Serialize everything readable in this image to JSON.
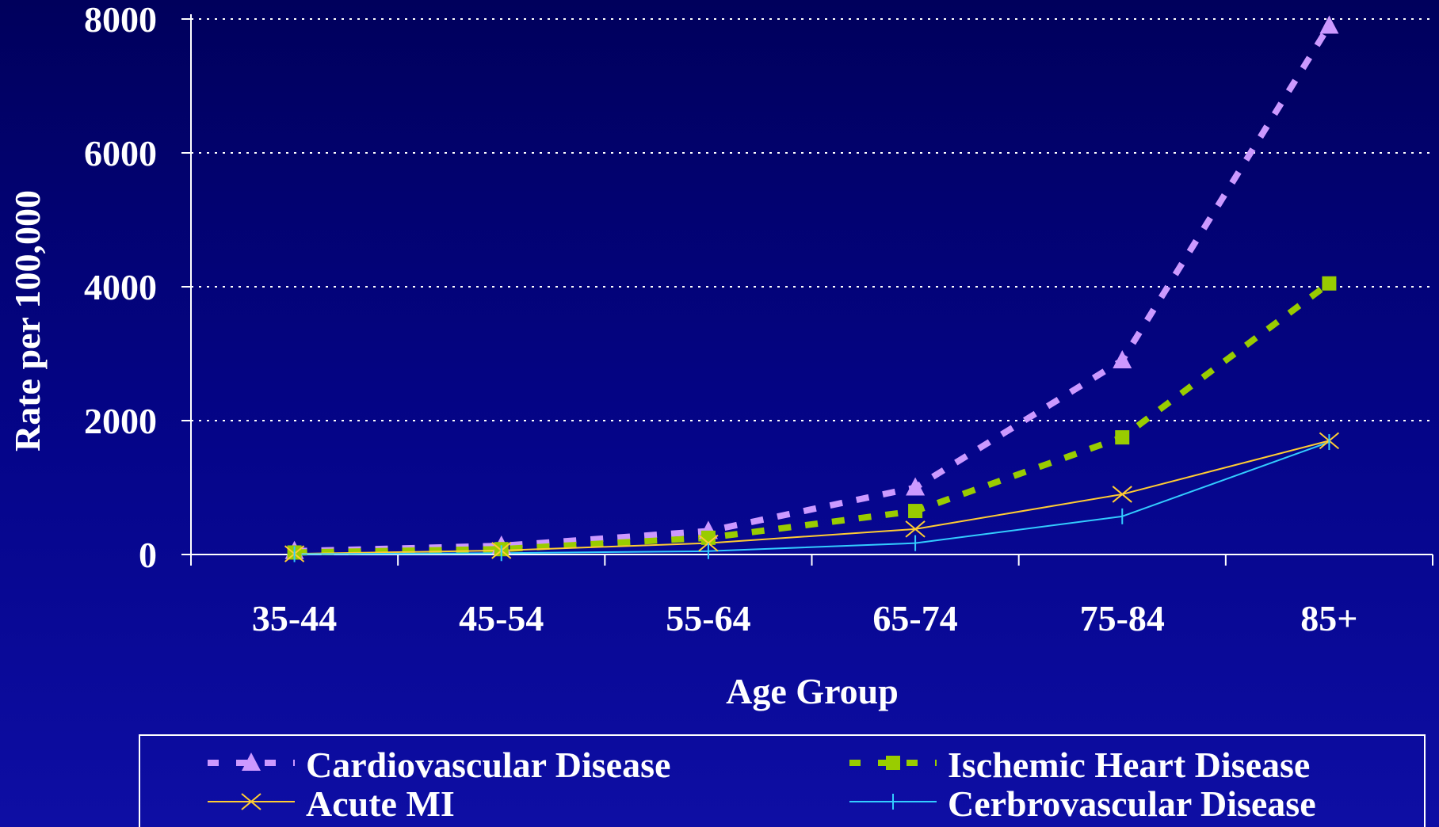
{
  "chart_data": {
    "type": "line",
    "title": "",
    "xlabel": "Age Group",
    "ylabel": "Rate per 100,000",
    "categories": [
      "35-44",
      "45-54",
      "55-64",
      "65-74",
      "75-84",
      "85+"
    ],
    "ylim": [
      0,
      8000
    ],
    "yticks": [
      "0",
      "2000",
      "4000",
      "6000",
      "8000"
    ],
    "grid": "horizontal dotted",
    "legend_position": "bottom",
    "series": [
      {
        "name": "Cardiovascular Disease",
        "values": [
          50,
          130,
          350,
          1000,
          2900,
          7900
        ],
        "color": "#cc99ff",
        "line_style": "dashed",
        "marker": "triangle"
      },
      {
        "name": "Ischemic Heart Disease",
        "values": [
          30,
          80,
          250,
          650,
          1750,
          4050
        ],
        "color": "#99cc00",
        "line_style": "dashed",
        "marker": "square"
      },
      {
        "name": "Acute MI",
        "values": [
          10,
          60,
          170,
          380,
          900,
          1700
        ],
        "color": "#ffcc33",
        "line_style": "solid",
        "marker": "x"
      },
      {
        "name": "Cerbrovascular Disease",
        "values": [
          5,
          20,
          50,
          170,
          570,
          1680
        ],
        "color": "#33ccff",
        "line_style": "solid",
        "marker": "plus"
      }
    ]
  },
  "colors": {
    "background_top": "#00005c",
    "background_bottom": "#0e0ea4",
    "axis": "#ffffff",
    "grid": "#ffffff",
    "text": "#ffffff"
  }
}
